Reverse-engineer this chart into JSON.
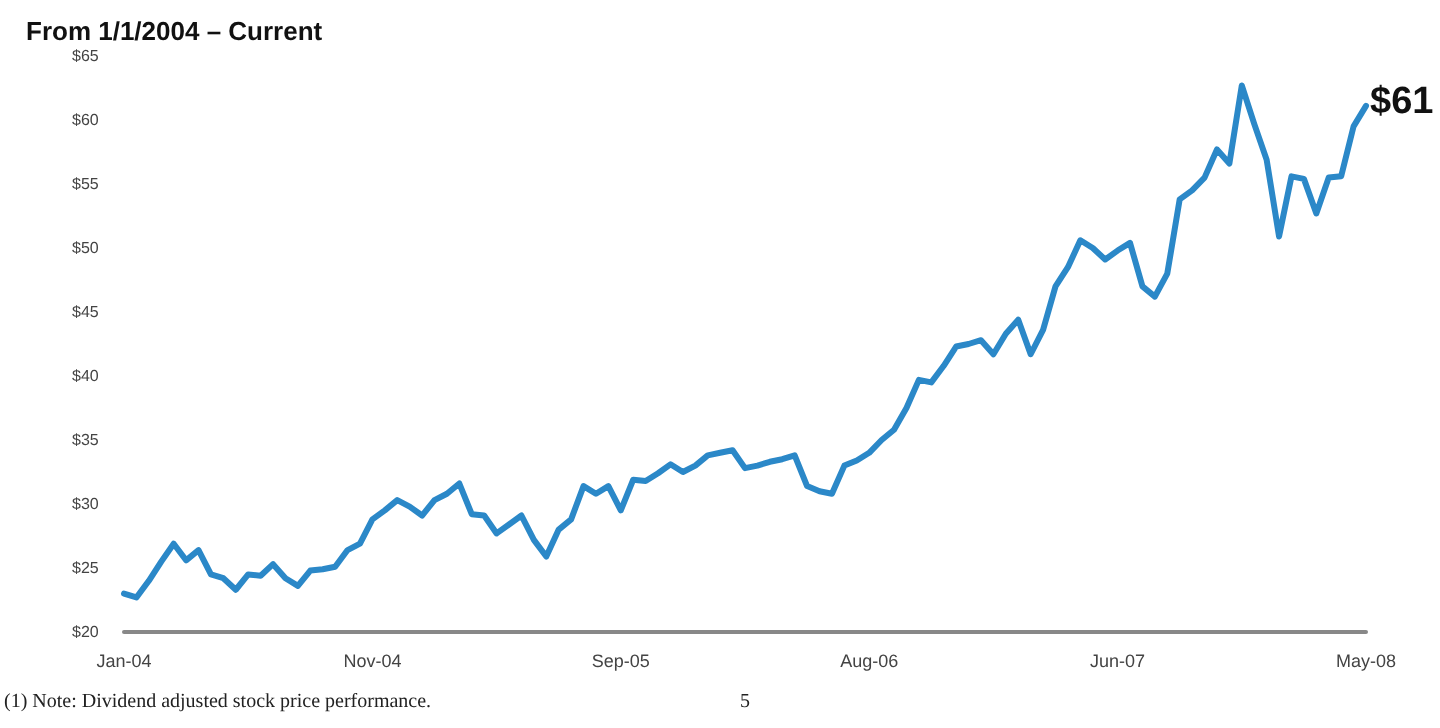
{
  "chart_data": {
    "type": "line",
    "title": "From 1/1/2004 – Current",
    "categories": [
      "Jan-04",
      null,
      null,
      null,
      null,
      null,
      null,
      null,
      null,
      null,
      null,
      null,
      null,
      null,
      null,
      null,
      null,
      null,
      null,
      null,
      "Nov-04",
      null,
      null,
      null,
      null,
      null,
      null,
      null,
      null,
      null,
      null,
      null,
      null,
      null,
      null,
      null,
      null,
      null,
      null,
      null,
      "Sep-05",
      null,
      null,
      null,
      null,
      null,
      null,
      null,
      null,
      null,
      null,
      null,
      null,
      null,
      null,
      null,
      null,
      null,
      null,
      null,
      "Aug-06",
      null,
      null,
      null,
      null,
      null,
      null,
      null,
      null,
      null,
      null,
      null,
      null,
      null,
      null,
      null,
      null,
      null,
      null,
      null,
      "Jun-07",
      null,
      null,
      null,
      null,
      null,
      null,
      null,
      null,
      null,
      null,
      null,
      null,
      null,
      null,
      null,
      null,
      null,
      null,
      null,
      "May-08"
    ],
    "series": [
      {
        "color": "#2b88c8",
        "values": [
          23.0,
          22.7,
          24.0,
          25.5,
          26.9,
          25.6,
          26.4,
          24.5,
          24.2,
          23.3,
          24.5,
          24.4,
          25.3,
          24.2,
          23.6,
          24.8,
          24.9,
          25.1,
          26.4,
          26.9,
          28.8,
          29.5,
          30.3,
          29.8,
          29.1,
          30.3,
          30.8,
          31.6,
          29.2,
          29.1,
          27.7,
          28.4,
          29.1,
          27.2,
          25.9,
          28.0,
          28.8,
          31.4,
          30.8,
          31.4,
          29.5,
          31.9,
          31.8,
          32.4,
          33.1,
          32.5,
          33.0,
          33.8,
          34.0,
          34.2,
          32.8,
          33.0,
          33.3,
          33.5,
          33.8,
          31.4,
          31.0,
          30.8,
          33.0,
          33.4,
          34.0,
          35.0,
          35.8,
          37.5,
          39.7,
          39.5,
          40.8,
          42.3,
          42.5,
          42.8,
          41.7,
          43.3,
          44.4,
          41.7,
          43.6,
          47.0,
          48.5,
          50.6,
          50.0,
          49.1,
          49.8,
          50.4,
          47.0,
          46.2,
          48.0,
          53.8,
          54.5,
          55.5,
          57.7,
          56.6,
          62.7,
          59.7,
          56.9,
          50.9,
          55.6,
          55.4,
          52.7,
          55.5,
          55.6,
          59.5,
          61.1
        ]
      }
    ],
    "ylim": [
      20,
      65
    ],
    "yticks": [
      {
        "value": 20,
        "label": "$20"
      },
      {
        "value": 25,
        "label": "$25"
      },
      {
        "value": 30,
        "label": "$30"
      },
      {
        "value": 35,
        "label": "$35"
      },
      {
        "value": 40,
        "label": "$40"
      },
      {
        "value": 45,
        "label": "$45"
      },
      {
        "value": 50,
        "label": "$50"
      },
      {
        "value": 55,
        "label": "$55"
      },
      {
        "value": 60,
        "label": "$60"
      },
      {
        "value": 65,
        "label": "$65"
      }
    ],
    "grid": false,
    "marker": "none",
    "line_style": "solid",
    "annotations": [
      {
        "text": "$61",
        "x": "May-08",
        "y": 61.1
      },
      "(1) Note: Dividend adjusted stock price performance.",
      "5"
    ]
  }
}
